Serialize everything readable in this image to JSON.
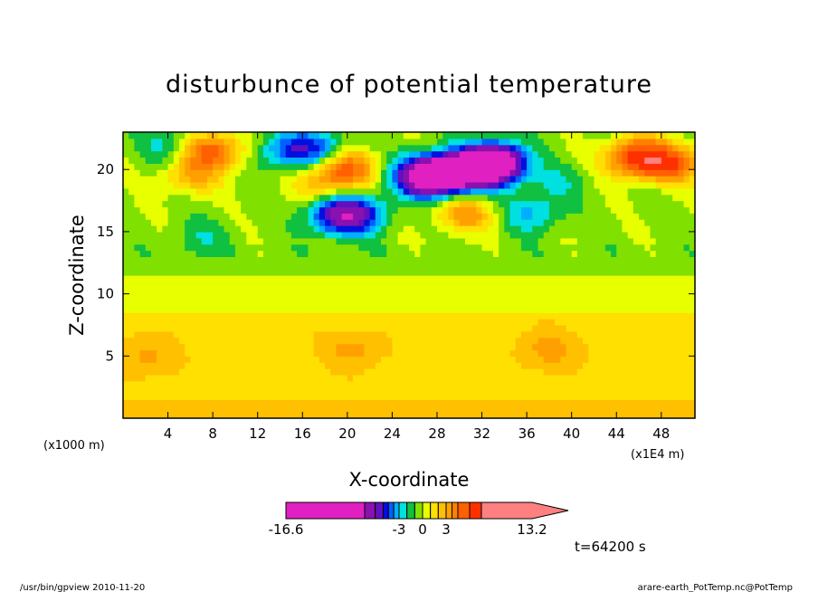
{
  "chart_data": {
    "type": "heatmap",
    "title": "disturbunce of potential temperature",
    "xlabel": "X-coordinate",
    "ylabel": "Z-coordinate",
    "x_unit_left": "(x1000 m)",
    "x_unit_right": "(x1E4 m)",
    "xlim": [
      0,
      51
    ],
    "ylim": [
      0,
      23
    ],
    "x_ticks": [
      4,
      8,
      12,
      16,
      20,
      24,
      28,
      32,
      36,
      40,
      44,
      48
    ],
    "y_ticks": [
      5,
      10,
      15,
      20
    ],
    "colorbar": {
      "min": -16.6,
      "max": 13.2,
      "tick_labels": [
        "-16.6",
        "-3",
        "0",
        "3",
        "13.2"
      ],
      "levels": [
        -16.6,
        -9.5,
        -7.5,
        -6,
        -5,
        -4,
        -3,
        -2,
        -1,
        0,
        1,
        2,
        3,
        4,
        5,
        7,
        9,
        13.2
      ],
      "colors": [
        "#e020c0",
        "#8a10b0",
        "#6010c0",
        "#0010e0",
        "#0060ff",
        "#00b0ff",
        "#00e0e0",
        "#10c040",
        "#80e000",
        "#e8ff00",
        "#ffe000",
        "#ffc000",
        "#ffa000",
        "#ff8000",
        "#ff6000",
        "#ff3000",
        "#ff8080",
        "#ffc0c0"
      ]
    },
    "blobs": [
      {
        "x": 27,
        "y": 19.5,
        "value": -13
      },
      {
        "x": 33,
        "y": 20.5,
        "value": -16
      },
      {
        "x": 30,
        "y": 19.8,
        "value": -11
      },
      {
        "x": 19,
        "y": 16.3,
        "value": -6
      },
      {
        "x": 21,
        "y": 16.5,
        "value": -5
      },
      {
        "x": 14.5,
        "y": 21.5,
        "value": -4
      },
      {
        "x": 17.5,
        "y": 21.8,
        "value": -4
      },
      {
        "x": 4,
        "y": 22,
        "value": -2
      },
      {
        "x": 8,
        "y": 21.5,
        "value": 6
      },
      {
        "x": 6,
        "y": 19.5,
        "value": 3
      },
      {
        "x": 20,
        "y": 20.2,
        "value": 5
      },
      {
        "x": 18,
        "y": 19,
        "value": 3
      },
      {
        "x": 30.5,
        "y": 16.5,
        "value": 4
      },
      {
        "x": 45.8,
        "y": 21,
        "value": 8
      },
      {
        "x": 49,
        "y": 20.5,
        "value": 6
      },
      {
        "x": 36.5,
        "y": 16.5,
        "value": -3
      },
      {
        "x": 38.5,
        "y": 19,
        "value": -1.5
      },
      {
        "x": 7,
        "y": 14.5,
        "value": -1.5
      },
      {
        "x": 20.5,
        "y": 5.5,
        "value": 1.6
      },
      {
        "x": 38,
        "y": 5.5,
        "value": 1.8
      },
      {
        "x": 2,
        "y": 5,
        "value": 1.6
      }
    ]
  },
  "annotations": {
    "time": "t=64200 s",
    "footer_left": "/usr/bin/gpview  2010-11-20",
    "footer_right": "arare-earth_PotTemp.nc@PotTemp"
  }
}
